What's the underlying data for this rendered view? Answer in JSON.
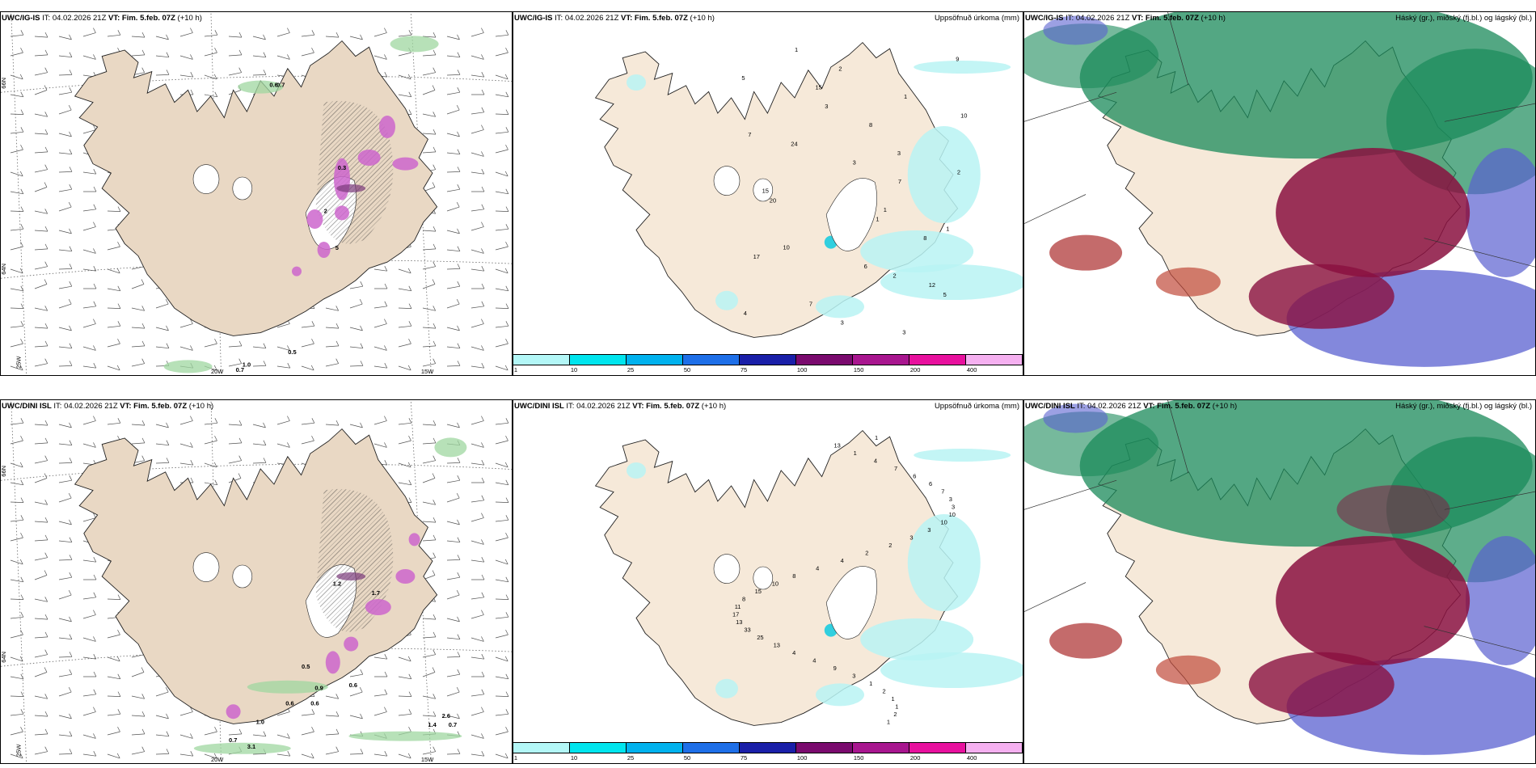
{
  "rows": [
    {
      "model": "UWC/IG-IS",
      "panels": [
        {
          "kind": "wind",
          "title_model": "UWC/IG-IS",
          "title_it_label": "IT:",
          "title_it": "04.02.2026 21Z",
          "title_vt_label": "VT:",
          "title_vt": "Fim. 5.feb. 07Z",
          "title_lead": "(+10 h)",
          "title_right": "",
          "lat_labels": [
            "66N",
            "64N"
          ],
          "lon_labels": [
            "25W",
            "20W",
            "15W"
          ],
          "values": [
            "0.6",
            "0.7",
            "0.5",
            "1.0",
            "0.7",
            "0.3",
            "2",
            "5"
          ]
        },
        {
          "kind": "precip",
          "title_model": "UWC/IG-IS",
          "title_it_label": "IT:",
          "title_it": "04.02.2026 21Z",
          "title_vt_label": "VT:",
          "title_vt": "Fim. 5.feb. 07Z",
          "title_lead": "(+10 h)",
          "title_right": "Uppsöfnuð úrkoma (mm)",
          "values": [
            "1",
            "3",
            "3",
            "1",
            "2",
            "3",
            "1",
            "3",
            "1",
            "6",
            "3",
            "15",
            "24",
            "20",
            "17",
            "4",
            "5",
            "7",
            "15",
            "10",
            "7",
            "2",
            "8",
            "7",
            "8",
            "5",
            "9",
            "10",
            "2",
            "1",
            "12"
          ]
        },
        {
          "kind": "cloud",
          "title_model": "UWC/IG-IS",
          "title_it_label": "IT:",
          "title_it": "04.02.2026 21Z",
          "title_vt_label": "VT:",
          "title_vt": "Fim. 5.feb. 07Z",
          "title_lead": "(+10 h)",
          "title_right": "Háský (gr.), miðský (fj.bl.) og lágský (bl.)"
        }
      ]
    },
    {
      "model": "UWC/DINI ISL",
      "panels": [
        {
          "kind": "wind",
          "title_model": "UWC/DINI ISL",
          "title_it_label": "IT:",
          "title_it": "04.02.2026 21Z",
          "title_vt_label": "VT:",
          "title_vt": "Fim. 5.feb. 07Z",
          "title_lead": "(+10 h)",
          "title_right": "",
          "lat_labels": [
            "66N",
            "64N"
          ],
          "lon_labels": [
            "25W",
            "20W",
            "15W"
          ],
          "values": [
            "1.2",
            "1.7",
            "0.5",
            "0.9",
            "0.6",
            "0.6",
            "1.0",
            "0.6",
            "2.6",
            "1.4",
            "0.7",
            "3.1",
            "0.7"
          ]
        },
        {
          "kind": "precip",
          "title_model": "UWC/DINI ISL",
          "title_it_label": "IT:",
          "title_it": "04.02.2026 21Z",
          "title_vt_label": "VT:",
          "title_vt": "Fim. 5.feb. 07Z",
          "title_lead": "(+10 h)",
          "title_right": "Uppsöfnuð úrkoma (mm)",
          "values": [
            "1",
            "1",
            "2",
            "1",
            "1",
            "2",
            "1",
            "3",
            "9",
            "4",
            "4",
            "13",
            "25",
            "33",
            "13",
            "17",
            "11",
            "8",
            "15",
            "10",
            "8",
            "4",
            "4",
            "2",
            "2",
            "3",
            "3",
            "10",
            "10",
            "3",
            "3",
            "7",
            "6",
            "6",
            "7",
            "4",
            "1",
            "13"
          ]
        },
        {
          "kind": "cloud",
          "title_model": "UWC/DINI ISL",
          "title_it_label": "IT:",
          "title_it": "04.02.2026 21Z",
          "title_vt_label": "VT:",
          "title_vt": "Fim. 5.feb. 07Z",
          "title_lead": "(+10 h)",
          "title_right": "Háský (gr.), miðský (fj.bl.) og lágský (bl.)"
        }
      ]
    }
  ],
  "precip_legend": {
    "colors": [
      "#b3f7f7",
      "#00e5ee",
      "#00b2ee",
      "#1e6fe8",
      "#1a1fa8",
      "#7a0a6e",
      "#a8168f",
      "#e8109e",
      "#f5b0f0"
    ],
    "ticks": [
      "1",
      "10",
      "25",
      "50",
      "75",
      "100",
      "150",
      "200",
      "400"
    ]
  },
  "colors": {
    "land": "#f6e9d9",
    "land_wind": "#e9d8c4",
    "precip_shade": "#b9f3f3",
    "snow_pink": "#cc66cc",
    "snow_dark": "#7a3a7a",
    "rain_green": "#9fd7a0",
    "cloud_high": "#1a8a5a",
    "cloud_mid": "#8a1040",
    "cloud_low": "#5a60d0",
    "coast": "#222222"
  }
}
